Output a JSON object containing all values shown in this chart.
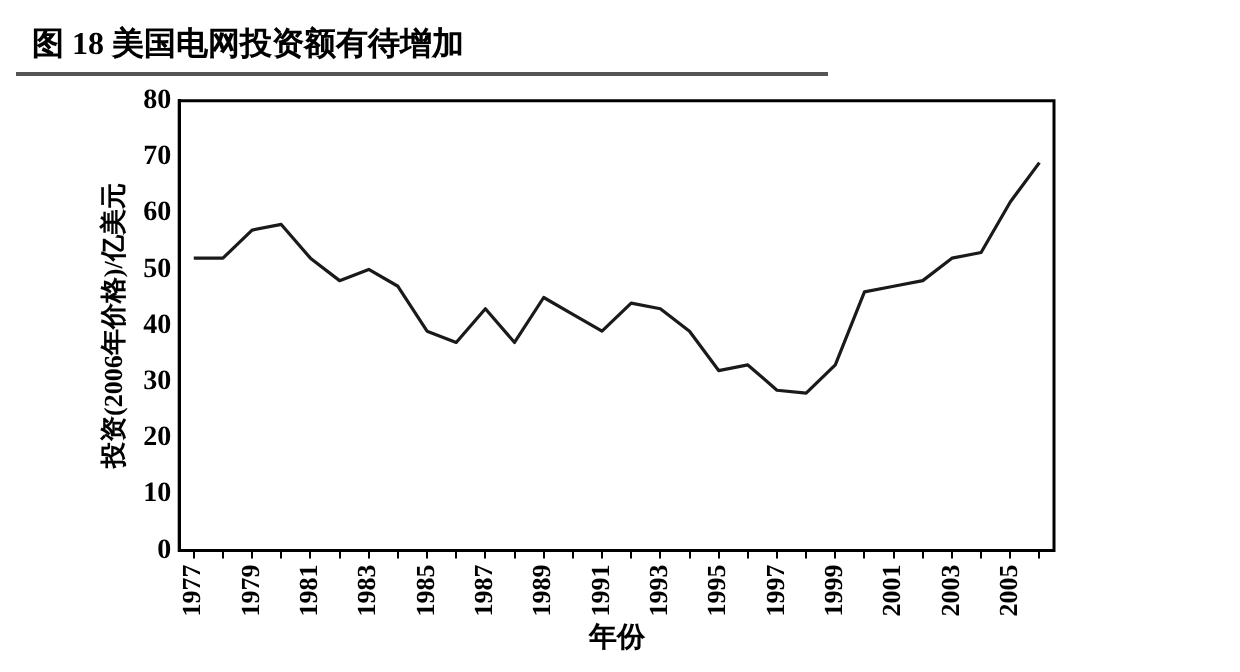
{
  "chart_data": {
    "type": "line",
    "title": "图 18  美国电网投资额有待增加",
    "xlabel": "年份",
    "ylabel": "投资(2006年价格)/亿美元",
    "categories": [
      "1977",
      null,
      "1979",
      null,
      "1981",
      null,
      "1983",
      null,
      "1985",
      null,
      "1987",
      null,
      "1989",
      null,
      "1991",
      null,
      "1993",
      null,
      "1995",
      null,
      "1997",
      null,
      "1999",
      null,
      "2001",
      null,
      "2003",
      null,
      "2005",
      null
    ],
    "series": [
      {
        "color": "#1a1a1a",
        "values": [
          52,
          52,
          57,
          58,
          52,
          48,
          50,
          47,
          39,
          37,
          43,
          37,
          45,
          42,
          39,
          44,
          43,
          39,
          32,
          33,
          28.5,
          28,
          33,
          46,
          47,
          48,
          52,
          53,
          62,
          69
        ]
      }
    ],
    "ylim": [
      0,
      80
    ],
    "yticks": [
      0,
      10,
      20,
      30,
      40,
      50,
      60,
      70,
      80
    ],
    "grid": false,
    "legend": false,
    "marker": "none",
    "line_style": "solid"
  }
}
